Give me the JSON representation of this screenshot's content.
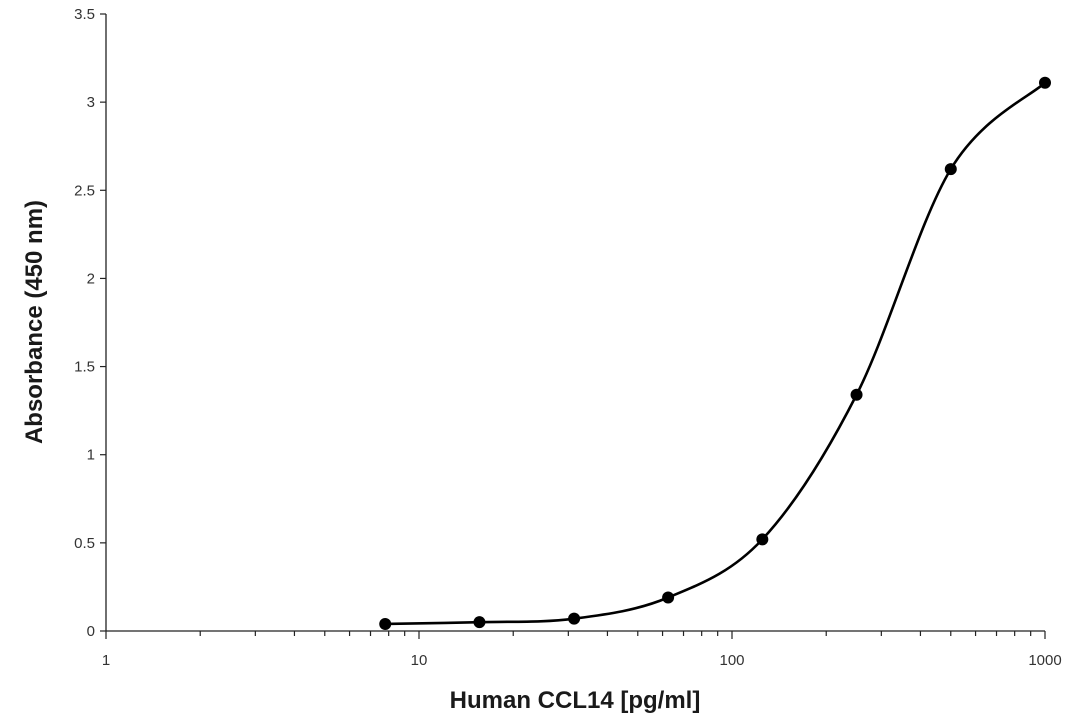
{
  "chart_data": {
    "type": "scatter",
    "title": "",
    "xlabel": "Human CCL14 [pg/ml]",
    "ylabel": "Absorbance (450 nm)",
    "x_scale": "log",
    "xlim": [
      1,
      1000
    ],
    "ylim": [
      0,
      3.5
    ],
    "x_ticks": [
      1,
      10,
      100,
      1000
    ],
    "x_tick_labels": [
      "1",
      "10",
      "100",
      "1000"
    ],
    "y_ticks": [
      0,
      0.5,
      1,
      1.5,
      2,
      2.5,
      3,
      3.5
    ],
    "y_tick_labels": [
      "0",
      "0.5",
      "1",
      "1.5",
      "2",
      "2.5",
      "3",
      "3.5"
    ],
    "grid": false,
    "legend": "none",
    "line": "smooth",
    "color": "#000000",
    "series": [
      {
        "x": [
          7.8,
          15.6,
          31.3,
          62.5,
          125,
          250,
          500,
          1000
        ],
        "y": [
          0.04,
          0.05,
          0.07,
          0.19,
          0.52,
          1.34,
          2.62,
          3.11
        ]
      }
    ]
  }
}
